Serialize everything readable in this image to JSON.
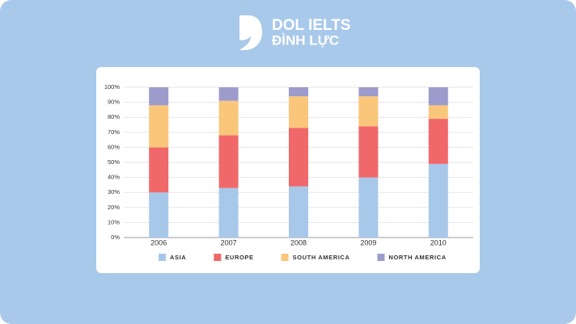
{
  "header": {
    "brand": "DOL IELTS",
    "subtitle": "ĐÌNH LỰC"
  },
  "chart_data": {
    "type": "stacked_bar",
    "categories": [
      "2006",
      "2007",
      "2008",
      "2009",
      "2010"
    ],
    "series": [
      {
        "name": "ASIA",
        "color": "#a8c8ea",
        "values": [
          30,
          33,
          34,
          40,
          49
        ]
      },
      {
        "name": "EUROPE",
        "color": "#f0686a",
        "values": [
          30,
          35,
          39,
          34,
          30
        ]
      },
      {
        "name": "SOUTH AMERICA",
        "color": "#f9c67a",
        "values": [
          28,
          23,
          21,
          20,
          9
        ]
      },
      {
        "name": "NORTH AMERICA",
        "color": "#9d9bcc",
        "values": [
          12,
          9,
          6,
          6,
          12
        ]
      }
    ],
    "ylim": [
      0,
      100
    ],
    "yticks": [
      {
        "value": 0,
        "label": "0%"
      },
      {
        "value": 10,
        "label": "10%"
      },
      {
        "value": 20,
        "label": "20%"
      },
      {
        "value": 30,
        "label": "30%"
      },
      {
        "value": 40,
        "label": "40%"
      },
      {
        "value": 50,
        "label": "50%"
      },
      {
        "value": 60,
        "label": "60%"
      },
      {
        "value": 70,
        "label": "70%"
      },
      {
        "value": 80,
        "label": "80%"
      },
      {
        "value": 90,
        "label": "90%"
      },
      {
        "value": 100,
        "label": "100%"
      }
    ],
    "grid": true,
    "legend": "bottom"
  }
}
